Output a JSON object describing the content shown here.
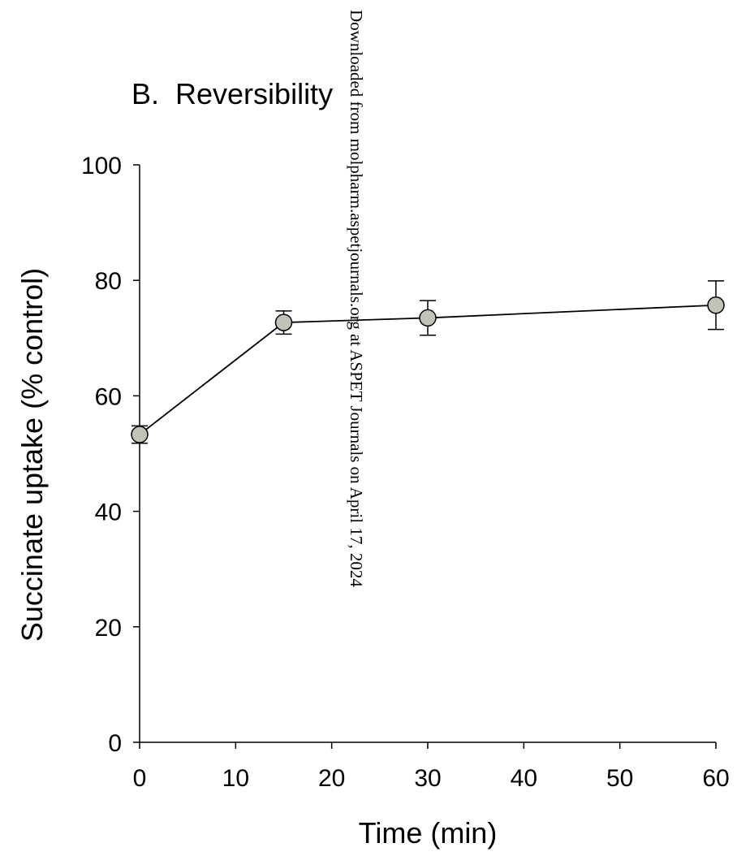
{
  "chart_data": {
    "type": "line",
    "title": "B.  Reversibility",
    "xlabel": "Time (min)",
    "ylabel": "Succinate uptake (% control)",
    "xlim": [
      0,
      60
    ],
    "ylim": [
      0,
      100
    ],
    "xticks": [
      0,
      10,
      20,
      30,
      40,
      50,
      60
    ],
    "yticks": [
      0,
      20,
      40,
      60,
      80,
      100
    ],
    "grid": false,
    "series": [
      {
        "x": [
          0,
          15,
          30,
          60
        ],
        "y": [
          53.3,
          72.7,
          73.5,
          75.7
        ],
        "error": [
          1.5,
          2.0,
          3.0,
          4.2
        ],
        "marker_color": "#c2c2b8",
        "line_color": "#000000"
      }
    ]
  },
  "watermark": "Downloaded from molpharm.aspetjournals.org at ASPET Journals on April 17, 2024"
}
